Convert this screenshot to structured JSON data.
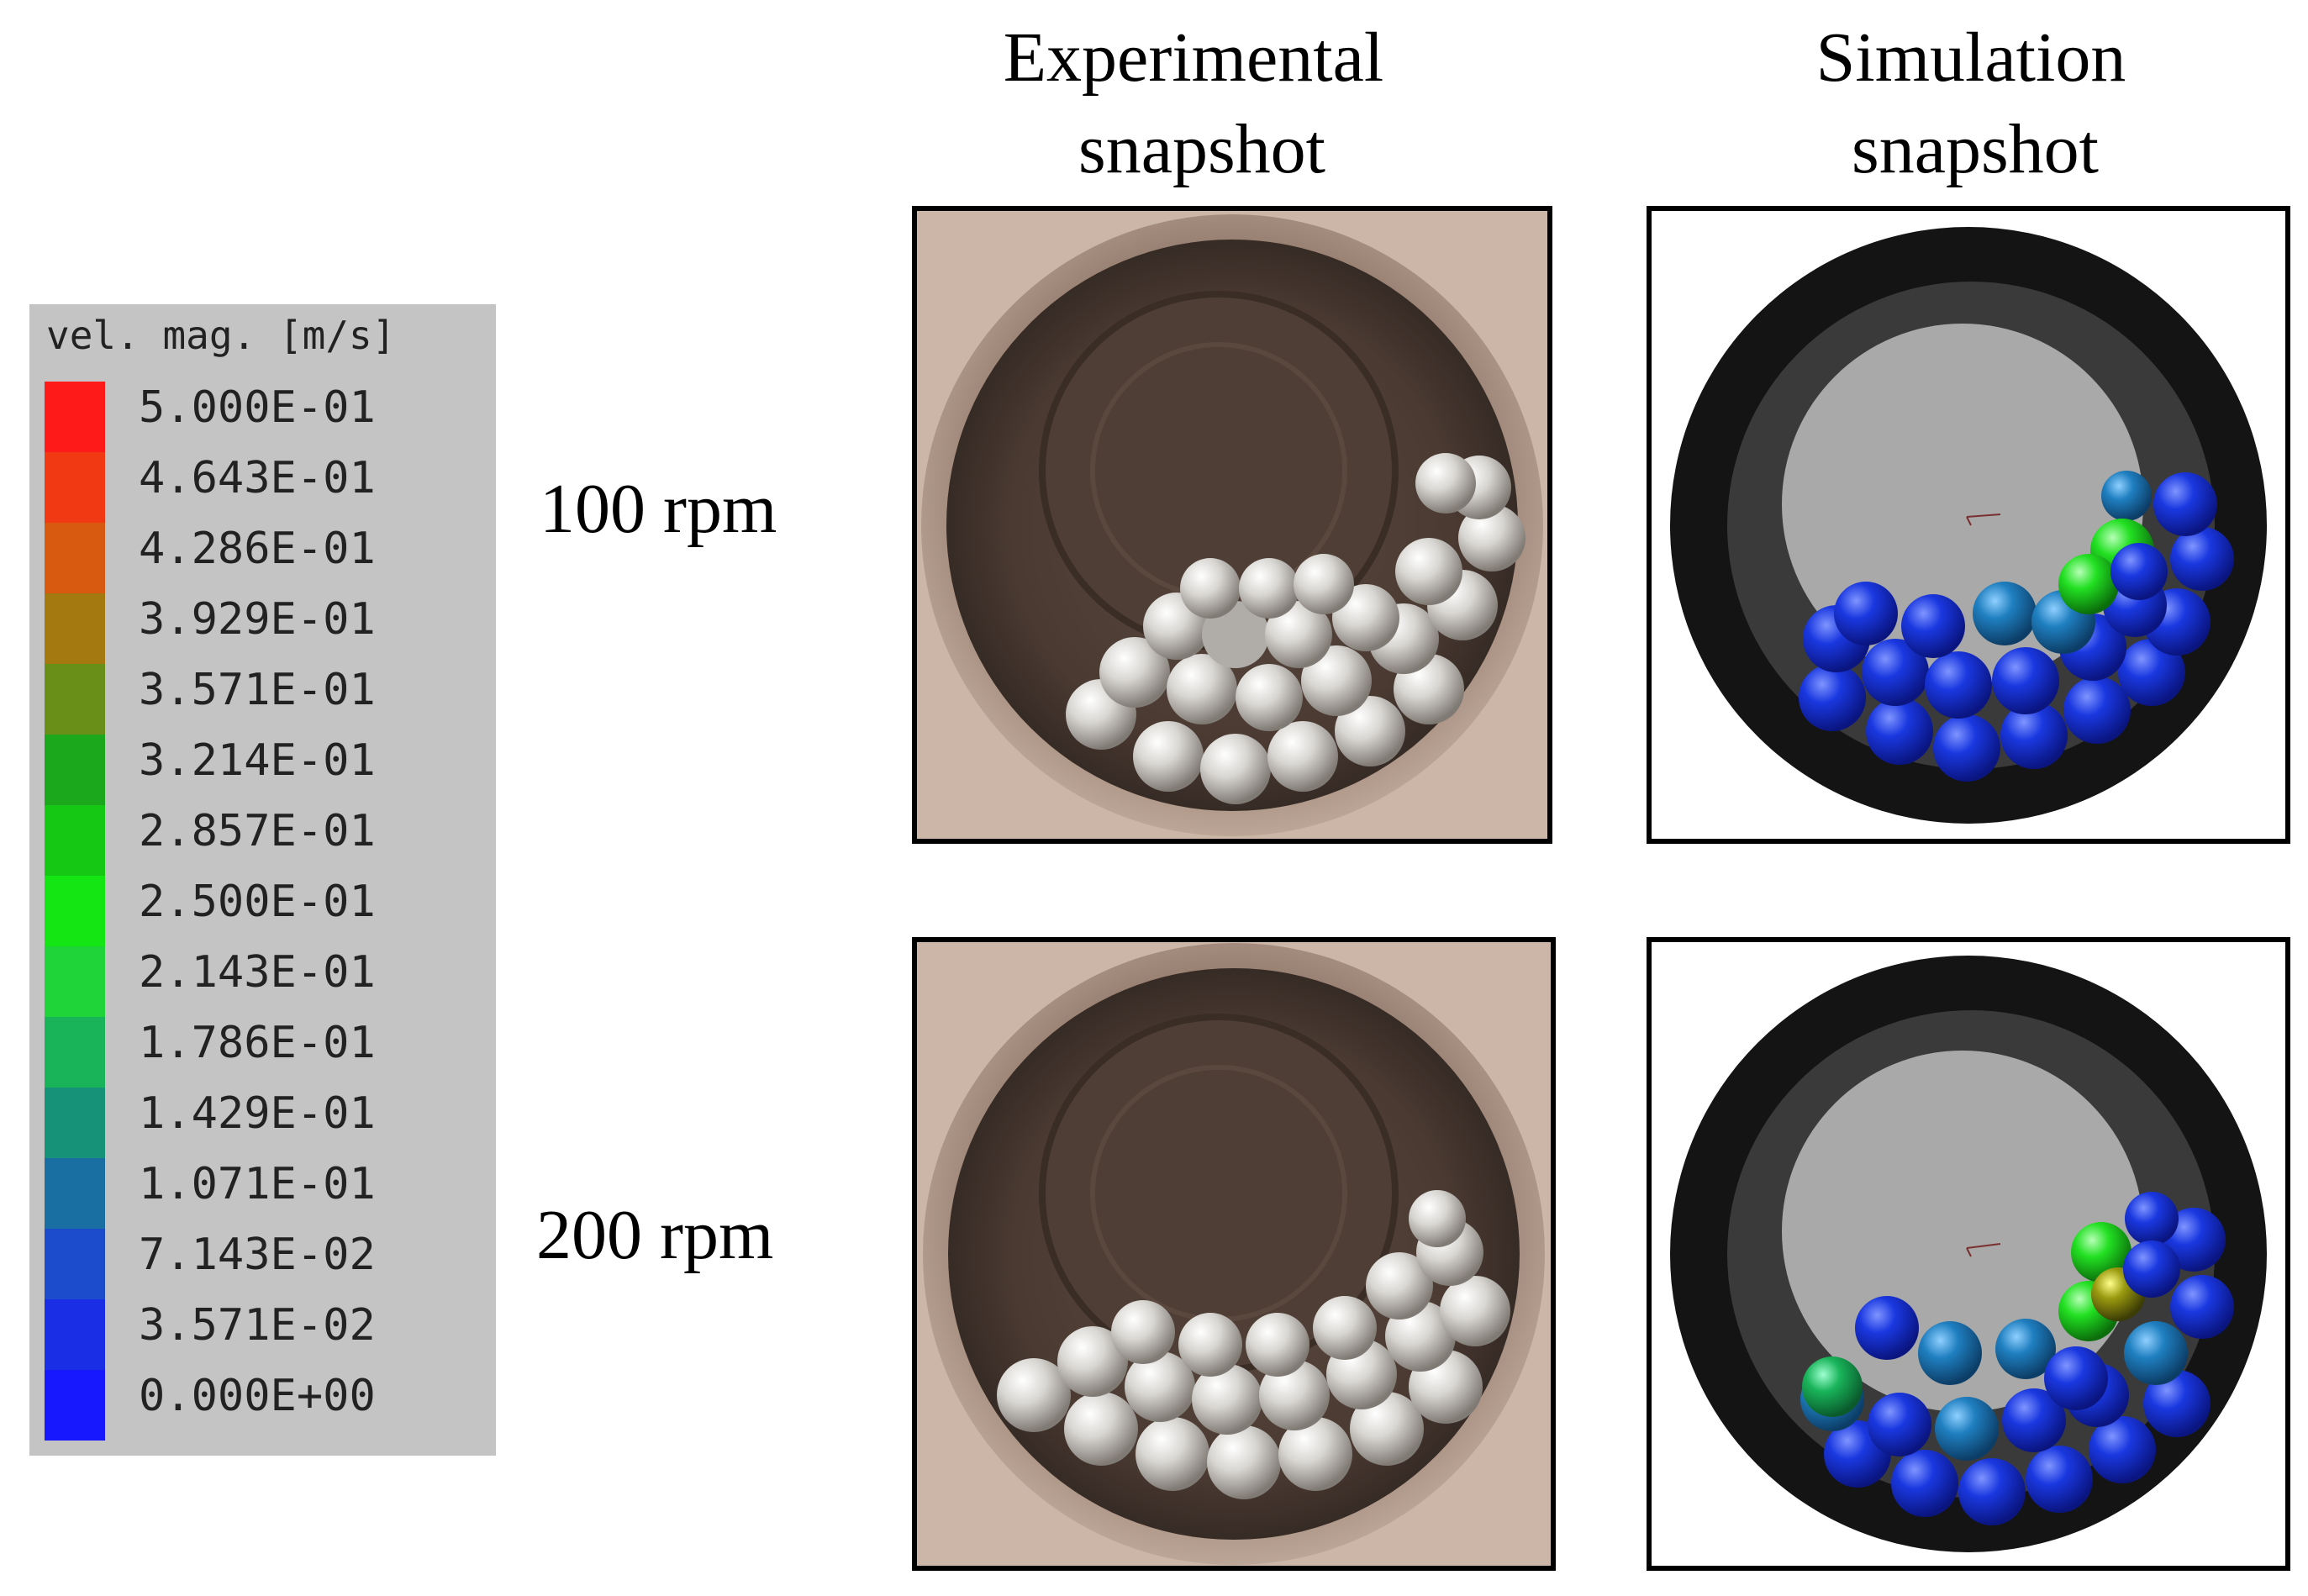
{
  "headers": {
    "experimental": [
      "Experimental",
      "snapshot"
    ],
    "simulation": [
      "Simulation",
      "snapshot"
    ]
  },
  "rows": [
    {
      "label": "100 rpm"
    },
    {
      "label": "200 rpm"
    }
  ],
  "legend": {
    "title": "vel. mag. [m/s]",
    "entries": [
      {
        "value": "5.000E-01",
        "color": "#ff1a1a"
      },
      {
        "value": "4.643E-01",
        "color": "#f13a13"
      },
      {
        "value": "4.286E-01",
        "color": "#d85a10"
      },
      {
        "value": "3.929E-01",
        "color": "#a47a10"
      },
      {
        "value": "3.571E-01",
        "color": "#6a8f18"
      },
      {
        "value": "3.214E-01",
        "color": "#1ca81c"
      },
      {
        "value": "2.857E-01",
        "color": "#14c814"
      },
      {
        "value": "2.500E-01",
        "color": "#14e614"
      },
      {
        "value": "2.143E-01",
        "color": "#1fd438"
      },
      {
        "value": "1.786E-01",
        "color": "#19b45a"
      },
      {
        "value": "1.429E-01",
        "color": "#169278"
      },
      {
        "value": "1.071E-01",
        "color": "#1a6fa2"
      },
      {
        "value": "7.143E-02",
        "color": "#1c4ccc"
      },
      {
        "value": "3.571E-02",
        "color": "#1a2ee6"
      },
      {
        "value": "0.000E+00",
        "color": "#1818ff"
      }
    ]
  },
  "colors": {
    "ball_blue": "#1230d8",
    "ball_cyan": "#1f7fc0",
    "ball_green": "#22e022",
    "ball_olive": "#9a9a10",
    "steel_ball": "#d8d6d2",
    "drum_bronze": "#7a6558"
  }
}
